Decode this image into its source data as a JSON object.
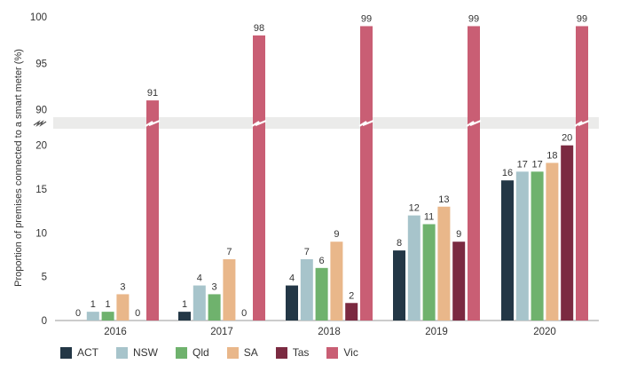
{
  "chart_data": {
    "type": "bar",
    "title": "",
    "xlabel": "",
    "ylabel": "Proportion of premises connected to a smart meter (%)",
    "categories": [
      "2016",
      "2017",
      "2018",
      "2019",
      "2020"
    ],
    "y_axis": {
      "broken": true,
      "lower_range": [
        0,
        22
      ],
      "upper_range": [
        89,
        100
      ],
      "lower_ticks": [
        "0",
        "5",
        "10",
        "15",
        "20"
      ],
      "upper_ticks": [
        "90",
        "95",
        "100"
      ]
    },
    "grid": false,
    "legend_position": "bottom-left",
    "series": [
      {
        "name": "ACT",
        "color": "#233746",
        "values": [
          0,
          1,
          4,
          8,
          16
        ],
        "labels": [
          "0",
          "1",
          "4",
          "8",
          "16"
        ]
      },
      {
        "name": "NSW",
        "color": "#a7c4cb",
        "values": [
          1,
          4,
          7,
          12,
          17
        ],
        "labels": [
          "1",
          "4",
          "7",
          "12",
          "17"
        ]
      },
      {
        "name": "Qld",
        "color": "#6fb26d",
        "values": [
          1,
          3,
          6,
          11,
          17
        ],
        "labels": [
          "1",
          "3",
          "6",
          "11",
          "17"
        ]
      },
      {
        "name": "SA",
        "color": "#e9b78a",
        "values": [
          3,
          7,
          9,
          13,
          18
        ],
        "labels": [
          "3",
          "7",
          "9",
          "13",
          "18"
        ]
      },
      {
        "name": "Tas",
        "color": "#7b2a41",
        "values": [
          0,
          0,
          2,
          9,
          20
        ],
        "labels": [
          "0",
          "0",
          "2",
          "9",
          "20"
        ]
      },
      {
        "name": "Vic",
        "color": "#c95e74",
        "values": [
          91,
          98,
          99,
          99,
          99
        ],
        "labels": [
          "91",
          "98",
          "99",
          "99",
          "99"
        ]
      }
    ]
  }
}
